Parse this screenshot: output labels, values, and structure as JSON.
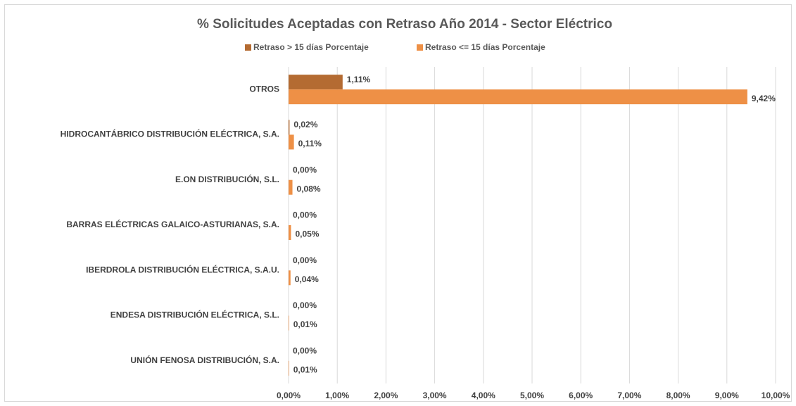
{
  "chart_data": {
    "type": "hbar",
    "title": "% Solicitudes Aceptadas con Retraso Año 2014 - Sector Eléctrico",
    "categories": [
      "OTROS",
      "HIDROCANTÁBRICO DISTRIBUCIÓN ELÉCTRICA, S.A.",
      "E.ON DISTRIBUCIÓN, S.L.",
      "BARRAS ELÉCTRICAS GALAICO-ASTURIANAS, S.A.",
      "IBERDROLA DISTRIBUCIÓN ELÉCTRICA, S.A.U.",
      "ENDESA DISTRIBUCIÓN ELÉCTRICA, S.L.",
      "UNIÓN FENOSA DISTRIBUCIÓN, S.A."
    ],
    "series": [
      {
        "name": "Retraso > 15 días Porcentaje",
        "color": "#b46b32",
        "values": [
          1.11,
          0.02,
          0,
          0,
          0,
          0,
          0
        ],
        "value_labels": [
          "1,11%",
          "0,02%",
          "0,00%",
          "0,00%",
          "0,00%",
          "0,00%",
          "0,00%"
        ]
      },
      {
        "name": "Retraso <= 15 días Porcentaje",
        "color": "#ee9046",
        "values": [
          9.42,
          0.11,
          0.08,
          0.05,
          0.04,
          0.01,
          0.01
        ],
        "value_labels": [
          "9,42%",
          "0,11%",
          "0,08%",
          "0,05%",
          "0,04%",
          "0,01%",
          "0,01%"
        ]
      }
    ],
    "xlim": [
      0,
      10
    ],
    "xticks": [
      {
        "value": 0,
        "label": "0,00%"
      },
      {
        "value": 1,
        "label": "1,00%"
      },
      {
        "value": 2,
        "label": "2,00%"
      },
      {
        "value": 3,
        "label": "3,00%"
      },
      {
        "value": 4,
        "label": "4,00%"
      },
      {
        "value": 5,
        "label": "5,00%"
      },
      {
        "value": 6,
        "label": "6,00%"
      },
      {
        "value": 7,
        "label": "7,00%"
      },
      {
        "value": 8,
        "label": "8,00%"
      },
      {
        "value": 9,
        "label": "9,00%"
      },
      {
        "value": 10,
        "label": "10,00%"
      }
    ],
    "grid": true,
    "legend": "top"
  }
}
